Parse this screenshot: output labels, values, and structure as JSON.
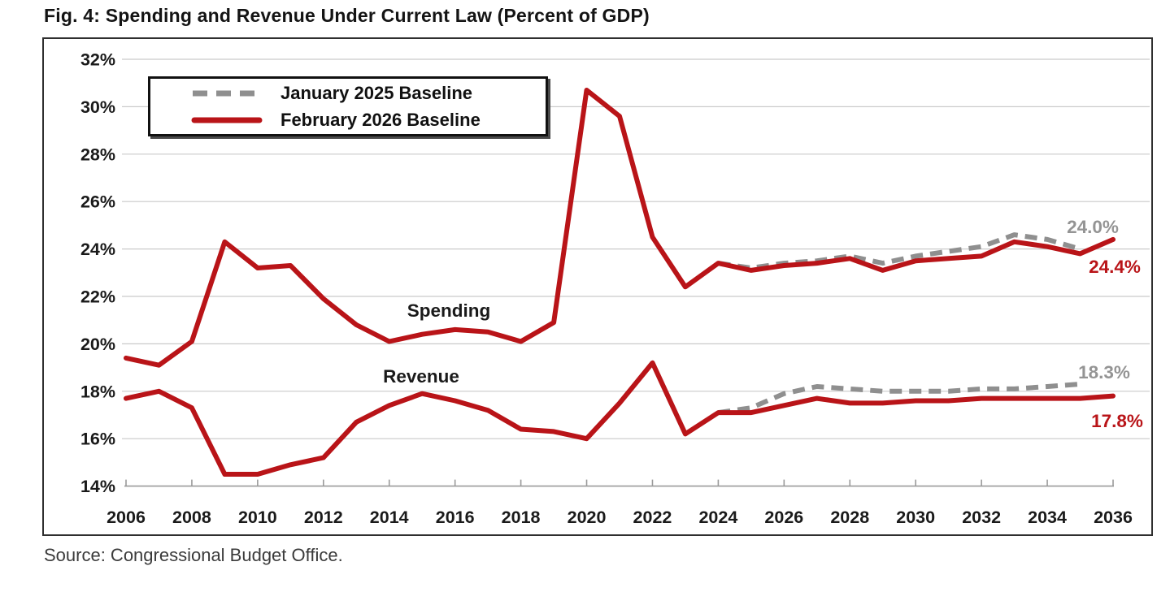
{
  "figure": {
    "title": "Fig. 4: Spending and Revenue Under Current Law (Percent of GDP)",
    "source": "Source: Congressional Budget Office."
  },
  "legend": {
    "items": [
      {
        "label": "January 2025 Baseline",
        "color": "#8f8f8f",
        "style": "dashed"
      },
      {
        "label": "February 2026 Baseline",
        "color": "#b91418",
        "style": "solid"
      }
    ]
  },
  "annotations": {
    "spending": "Spending",
    "revenue": "Revenue",
    "end_labels": [
      {
        "text": "24.0%",
        "series": "January 2025 Baseline",
        "group": "Spending",
        "color": "#949494"
      },
      {
        "text": "24.4%",
        "series": "February 2026 Baseline",
        "group": "Spending",
        "color": "#b91418"
      },
      {
        "text": "18.3%",
        "series": "January 2025 Baseline",
        "group": "Revenue",
        "color": "#949494"
      },
      {
        "text": "17.8%",
        "series": "February 2026 Baseline",
        "group": "Revenue",
        "color": "#b91418"
      }
    ]
  },
  "chart_data": {
    "type": "line",
    "title": "Fig. 4: Spending and Revenue Under Current Law (Percent of GDP)",
    "xlabel": "",
    "ylabel": "Percent of GDP",
    "xlim": [
      2006,
      2036
    ],
    "ylim": [
      14,
      32
    ],
    "grid": true,
    "legend_position": "top-left",
    "xticks": [
      2006,
      2008,
      2010,
      2012,
      2014,
      2016,
      2018,
      2020,
      2022,
      2024,
      2026,
      2028,
      2030,
      2032,
      2034,
      2036
    ],
    "yticks": [
      32,
      30,
      28,
      26,
      24,
      22,
      20,
      18,
      16,
      14
    ],
    "ytick_labels": [
      "32%",
      "30%",
      "28%",
      "26%",
      "24%",
      "22%",
      "20%",
      "18%",
      "16%",
      "14%"
    ],
    "series": [
      {
        "name": "January 2025 Baseline",
        "group": "Spending",
        "color": "#8f8f8f",
        "dashed": true,
        "x": [
          2024,
          2025,
          2026,
          2027,
          2028,
          2029,
          2030,
          2031,
          2032,
          2033,
          2034,
          2035
        ],
        "values": [
          23.4,
          23.2,
          23.4,
          23.5,
          23.7,
          23.4,
          23.7,
          23.9,
          24.1,
          24.6,
          24.4,
          24.0
        ]
      },
      {
        "name": "January 2025 Baseline",
        "group": "Revenue",
        "color": "#8f8f8f",
        "dashed": true,
        "x": [
          2024,
          2025,
          2026,
          2027,
          2028,
          2029,
          2030,
          2031,
          2032,
          2033,
          2034,
          2035
        ],
        "values": [
          17.1,
          17.3,
          17.9,
          18.2,
          18.1,
          18.0,
          18.0,
          18.0,
          18.1,
          18.1,
          18.2,
          18.3
        ]
      },
      {
        "name": "February 2026 Baseline",
        "group": "Spending",
        "color": "#b91418",
        "dashed": false,
        "x": [
          2006,
          2007,
          2008,
          2009,
          2010,
          2011,
          2012,
          2013,
          2014,
          2015,
          2016,
          2017,
          2018,
          2019,
          2020,
          2021,
          2022,
          2023,
          2024,
          2025,
          2026,
          2027,
          2028,
          2029,
          2030,
          2031,
          2032,
          2033,
          2034,
          2035,
          2036
        ],
        "values": [
          19.4,
          19.1,
          20.1,
          24.3,
          23.2,
          23.3,
          21.9,
          20.8,
          20.1,
          20.4,
          20.6,
          20.5,
          20.1,
          20.9,
          30.7,
          29.6,
          24.5,
          22.4,
          23.4,
          23.1,
          23.3,
          23.4,
          23.6,
          23.1,
          23.5,
          23.6,
          23.7,
          24.3,
          24.1,
          23.8,
          24.4
        ]
      },
      {
        "name": "February 2026 Baseline",
        "group": "Revenue",
        "color": "#b91418",
        "dashed": false,
        "x": [
          2006,
          2007,
          2008,
          2009,
          2010,
          2011,
          2012,
          2013,
          2014,
          2015,
          2016,
          2017,
          2018,
          2019,
          2020,
          2021,
          2022,
          2023,
          2024,
          2025,
          2026,
          2027,
          2028,
          2029,
          2030,
          2031,
          2032,
          2033,
          2034,
          2035,
          2036
        ],
        "values": [
          17.7,
          18.0,
          17.3,
          14.5,
          14.5,
          14.9,
          15.2,
          16.7,
          17.4,
          17.9,
          17.6,
          17.2,
          16.4,
          16.3,
          16.0,
          17.5,
          19.2,
          16.2,
          17.1,
          17.1,
          17.4,
          17.7,
          17.5,
          17.5,
          17.6,
          17.6,
          17.7,
          17.7,
          17.7,
          17.7,
          17.8
        ]
      }
    ],
    "end_point_labels": [
      {
        "series": "January 2025 Baseline",
        "group": "Spending",
        "year": 2035,
        "value": 24.0,
        "text": "24.0%"
      },
      {
        "series": "February 2026 Baseline",
        "group": "Spending",
        "year": 2036,
        "value": 24.4,
        "text": "24.4%"
      },
      {
        "series": "January 2025 Baseline",
        "group": "Revenue",
        "year": 2035,
        "value": 18.3,
        "text": "18.3%"
      },
      {
        "series": "February 2026 Baseline",
        "group": "Revenue",
        "year": 2036,
        "value": 17.8,
        "text": "17.8%"
      }
    ]
  }
}
